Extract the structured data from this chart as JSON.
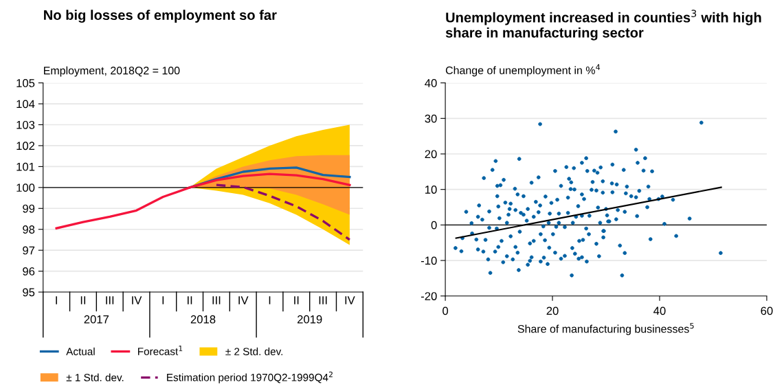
{
  "chart_data": [
    {
      "type": "line",
      "title": "No big losses of employment so far",
      "ylabel": "Employment, 2018Q2 = 100",
      "categories": [
        "I",
        "II",
        "III",
        "IV",
        "I",
        "II",
        "III",
        "IV",
        "I",
        "II",
        "III",
        "IV"
      ],
      "annotations": [
        "2017",
        "2018",
        "2019"
      ],
      "series": [
        {
          "name": "± 2 Std. dev.",
          "type": "area",
          "color": "#ffcc00",
          "values": [
            null,
            null,
            null,
            null,
            null,
            null,
            null,
            null,
            null,
            null,
            null,
            null
          ],
          "upper": [
            null,
            null,
            null,
            null,
            null,
            100,
            100.9,
            101.45,
            102.0,
            102.45,
            102.75,
            103.0
          ],
          "lower": [
            null,
            null,
            null,
            null,
            null,
            100,
            99.85,
            99.65,
            99.25,
            98.7,
            98.0,
            97.25
          ]
        },
        {
          "name": "± 1 Std. dev.",
          "type": "area",
          "color": "#ff9933",
          "values": [
            null,
            null,
            null,
            null,
            null,
            null,
            null,
            null,
            null,
            null,
            null,
            null
          ],
          "upper": [
            null,
            null,
            null,
            null,
            null,
            100,
            100.55,
            101.0,
            101.3,
            101.5,
            101.55,
            101.55
          ],
          "lower": [
            null,
            null,
            null,
            null,
            null,
            100,
            99.95,
            99.95,
            99.95,
            99.65,
            99.2,
            98.7
          ]
        },
        {
          "name": "Actual",
          "color": "#1565a6",
          "values": [
            null,
            null,
            null,
            null,
            null,
            100,
            100.4,
            100.75,
            100.9,
            100.95,
            100.6,
            100.5
          ]
        },
        {
          "name": "Forecast$^{1}$",
          "color": "#f5143c",
          "values": [
            98.05,
            98.35,
            98.6,
            98.9,
            99.55,
            100,
            100.35,
            100.55,
            100.65,
            100.58,
            100.4,
            100.12
          ]
        },
        {
          "name": "Estimation period 1970Q2-1999Q4$^{2}$",
          "color": "#8b0a6a",
          "line_style": "dashed",
          "values": [
            null,
            null,
            null,
            null,
            null,
            null,
            100.12,
            100.02,
            99.6,
            99.1,
            98.4,
            97.5
          ]
        }
      ],
      "ylim": [
        95,
        105
      ],
      "yticks": [
        95,
        96,
        97,
        98,
        99,
        100,
        101,
        102,
        103,
        104,
        105
      ],
      "ref_lines": [
        {
          "axis": "y",
          "value": 100,
          "color": "#000000"
        }
      ],
      "grid": "y",
      "legend": "bottom"
    },
    {
      "type": "scatter",
      "title": "Unemployment increased in counties$^{3}$ with high share in manufacturing sector",
      "ylabel": "Change of unemployment in %$^{4}$",
      "xlabel": "Share of manufacturing businesses$^{5}$",
      "series": [
        {
          "color": "#0061a3",
          "marker": "circle",
          "x": [
            17.7,
            13.8,
            9.4,
            8.8,
            7.2,
            26.3,
            25.5,
            20.5,
            22.6,
            24.0,
            17.4,
            16.1,
            10.9,
            9.7,
            10.3,
            13.0,
            23.1,
            23.5,
            21.6,
            23.4,
            24.1,
            26.5,
            27.8,
            28.4,
            29.0,
            27.5,
            29.4,
            27.3,
            28.2,
            29.4,
            25.5,
            25.9,
            24.8,
            22.9,
            20.9,
            19.8,
            18.7,
            17.7,
            16.9,
            14.6,
            13.5,
            12.2,
            11.2,
            9.7,
            9.9,
            8.2,
            6.3,
            3.9,
            4.9,
            6.1,
            6.9,
            5.0,
            3.2,
            1.9,
            3.0,
            6.1,
            7.1,
            8.0,
            8.4,
            9.3,
            5.8,
            7.5,
            8.2,
            9.6,
            10.1,
            11.5,
            11.8,
            10.5,
            9.9,
            10.8,
            11.5,
            12.6,
            13.7,
            13.5,
            13.1,
            12.2,
            13.9,
            15.2,
            14.6,
            15.4,
            15.8,
            16.5,
            15.8,
            15.4,
            16.1,
            17.8,
            19.1,
            18.4,
            18.6,
            19.4,
            17.8,
            18.3,
            19.3,
            20.1,
            20.7,
            20.5,
            21.6,
            22.3,
            23.6,
            23.7,
            24.2,
            24.9,
            25.5,
            26.4,
            25.0,
            25.7,
            26.8,
            26.3,
            28.2,
            28.7,
            29.5,
            29.5,
            28.9,
            21.2,
            22.3,
            23.8,
            22.9,
            21.2,
            19.5,
            17.4,
            16.5,
            14.1,
            13.1,
            12.0,
            24.4,
            25.5,
            26.9,
            28.5,
            30.0,
            30.6,
            47.8,
            31.8,
            35.6,
            37.3,
            35.9,
            38.6,
            37.0,
            33.3,
            31.2,
            37.9,
            36.2,
            33.9,
            33.7,
            32.0,
            31.1,
            31.2,
            34.7,
            35.6,
            38.1,
            39.8,
            40.5,
            42.5,
            37.7,
            35.8,
            33.5,
            32.2,
            31.9,
            30.2,
            30.4,
            45.6,
            40.9,
            43.1,
            38.3,
            29.6,
            32.6,
            33.5,
            33.0,
            51.4
          ],
          "values": [
            28.4,
            18.6,
            18.0,
            15.5,
            13.2,
            18.8,
            17.5,
            15.2,
            16.3,
            16.0,
            13.4,
            11.9,
            12.7,
            11.0,
            11.2,
            10.2,
            13.0,
            12.0,
            11.0,
            10.1,
            10.0,
            15.2,
            15.3,
            14.7,
            16.2,
            12.1,
            12.3,
            9.9,
            9.7,
            9.1,
            8.6,
            7.3,
            5.3,
            7.7,
            7.1,
            6.2,
            8.0,
            5.5,
            6.5,
            8.1,
            8.6,
            6.0,
            6.3,
            8.1,
            5.2,
            3.8,
            5.5,
            3.7,
            0.5,
            2.3,
            1.5,
            -2.4,
            -3.7,
            -6.5,
            -7.4,
            -6.9,
            -7.5,
            -9.7,
            -13.5,
            -7.5,
            -4.1,
            -4.2,
            -0.8,
            -1.0,
            1.9,
            0.6,
            2.9,
            -4.5,
            -6.2,
            -10.5,
            -8.8,
            -9.7,
            -12.7,
            -7.8,
            -6.2,
            -3.2,
            -1.9,
            1.2,
            2.9,
            4.5,
            -5.2,
            -4.5,
            -10.1,
            -11.2,
            -9.1,
            -10.3,
            -11.0,
            -9.2,
            -4.3,
            -6.4,
            -2.6,
            -0.4,
            0.6,
            -2.6,
            -0.5,
            -7.8,
            -9.5,
            -8.7,
            -14.2,
            -6.5,
            -8.1,
            -9.5,
            -9.1,
            -10.3,
            -4.5,
            -4.2,
            -2.6,
            -1.0,
            -5.3,
            -8.8,
            -3.5,
            -1.7,
            0.6,
            0.6,
            -0.6,
            0.6,
            3.4,
            3.2,
            3.2,
            3.6,
            2.3,
            3.4,
            4.2,
            4.5,
            2.3,
            2.6,
            2.6,
            4.9,
            4.5,
            1.0,
            28.8,
            26.3,
            21.2,
            18.8,
            17.5,
            15.1,
            15.3,
            15.5,
            17.0,
            10.8,
            9.6,
            10.8,
            8.9,
            11.4,
            11.7,
            9.2,
            8.1,
            7.8,
            7.3,
            7.3,
            8.0,
            7.1,
            5.0,
            2.5,
            3.7,
            4.2,
            1.6,
            2.7,
            1.0,
            1.8,
            0.3,
            -3.1,
            -4.0,
            -1.7,
            -5.8,
            -7.9,
            -14.2,
            -7.9
          ]
        },
        {
          "type": "line",
          "color": "#000000",
          "x": [
            2,
            51.5
          ],
          "values": [
            -3.7,
            10.6
          ]
        }
      ],
      "xlim": [
        0,
        60
      ],
      "xticks": [
        0,
        20,
        40,
        60
      ],
      "ylim": [
        -20,
        40
      ],
      "yticks": [
        -20,
        -10,
        0,
        10,
        20,
        30,
        40
      ],
      "ref_lines": [
        {
          "axis": "y",
          "value": 0,
          "color": "#000000"
        }
      ],
      "grid": "y"
    }
  ]
}
